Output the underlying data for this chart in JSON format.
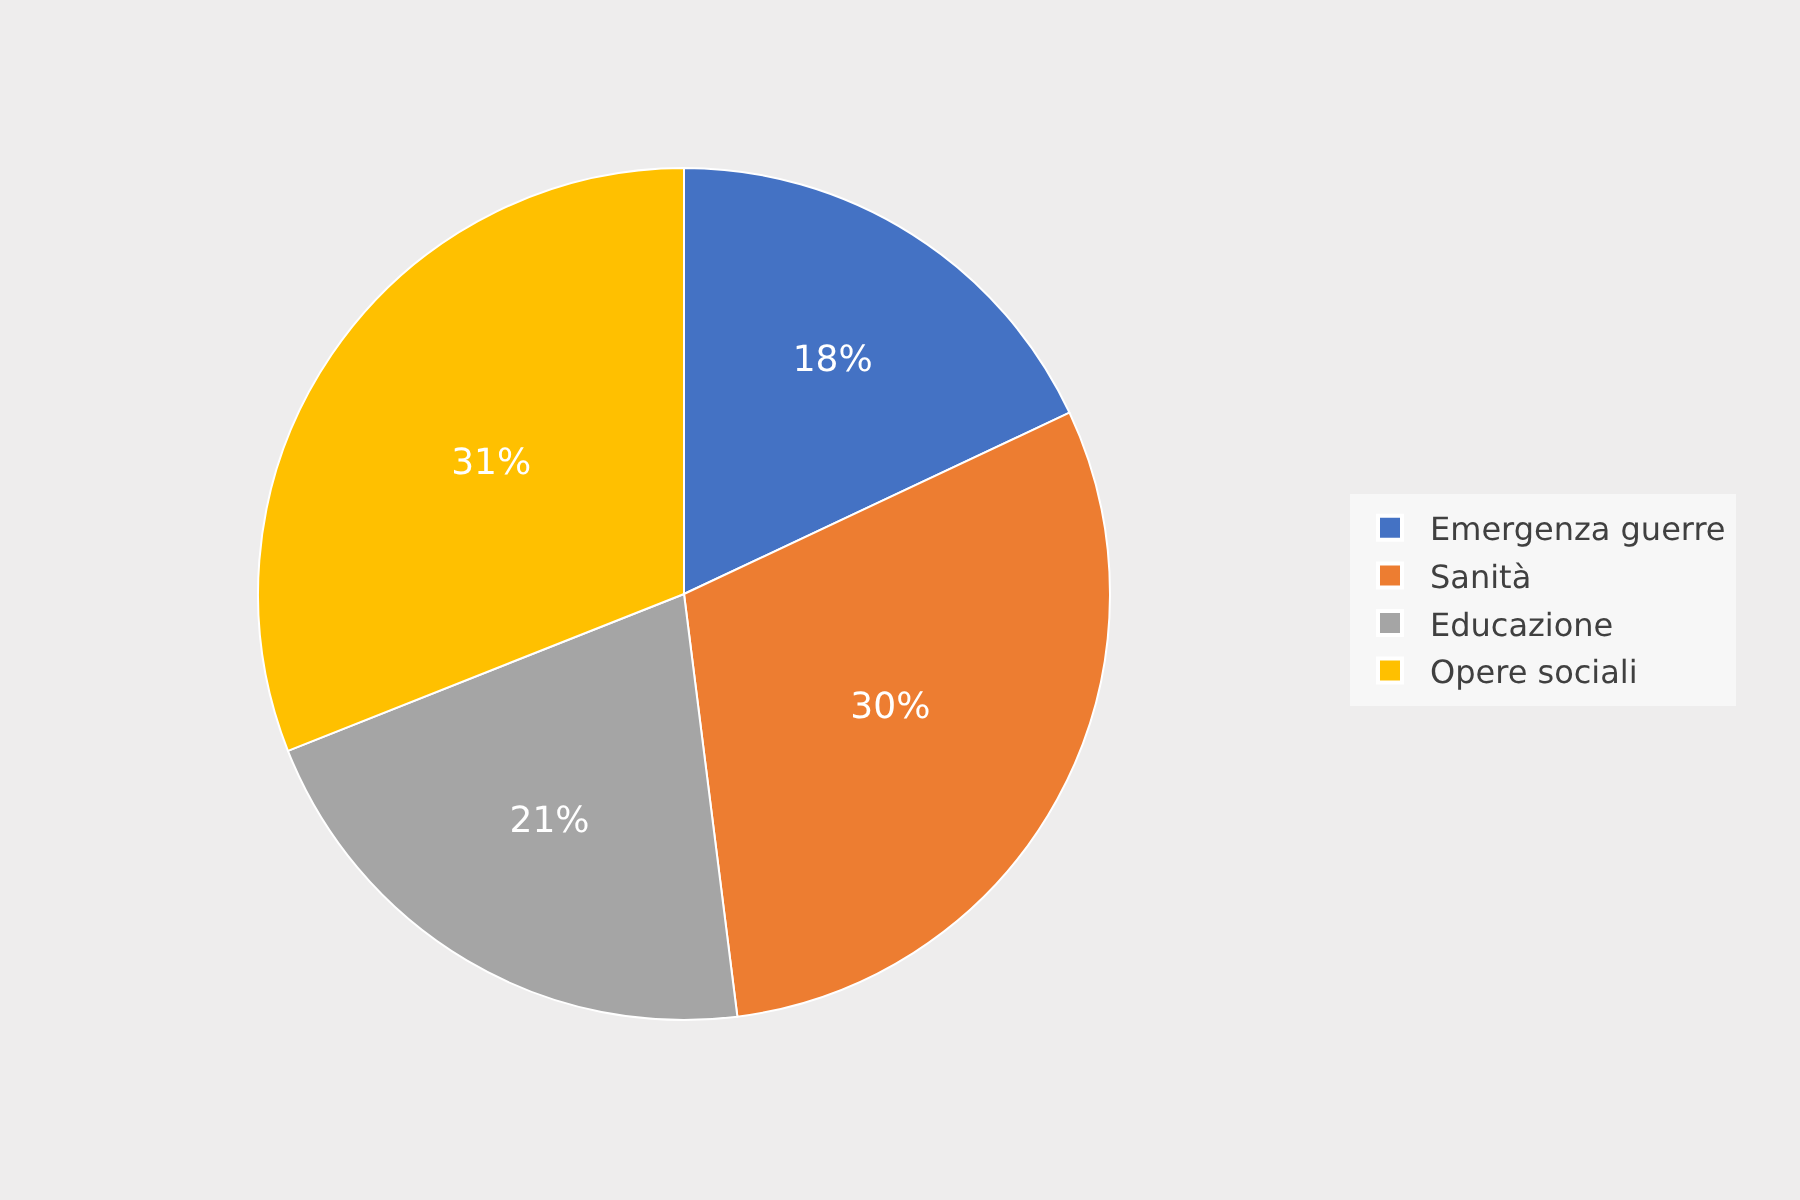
{
  "chart_data": {
    "type": "pie",
    "categories": [
      "Emergenza guerre",
      "Sanità",
      "Educazione",
      "Opere sociali"
    ],
    "values": [
      18,
      30,
      21,
      31
    ],
    "value_labels": [
      "18%",
      "30%",
      "21%",
      "31%"
    ],
    "colors": [
      "#4472c4",
      "#ed7d31",
      "#a5a5a5",
      "#ffc000"
    ],
    "legend": "right"
  }
}
